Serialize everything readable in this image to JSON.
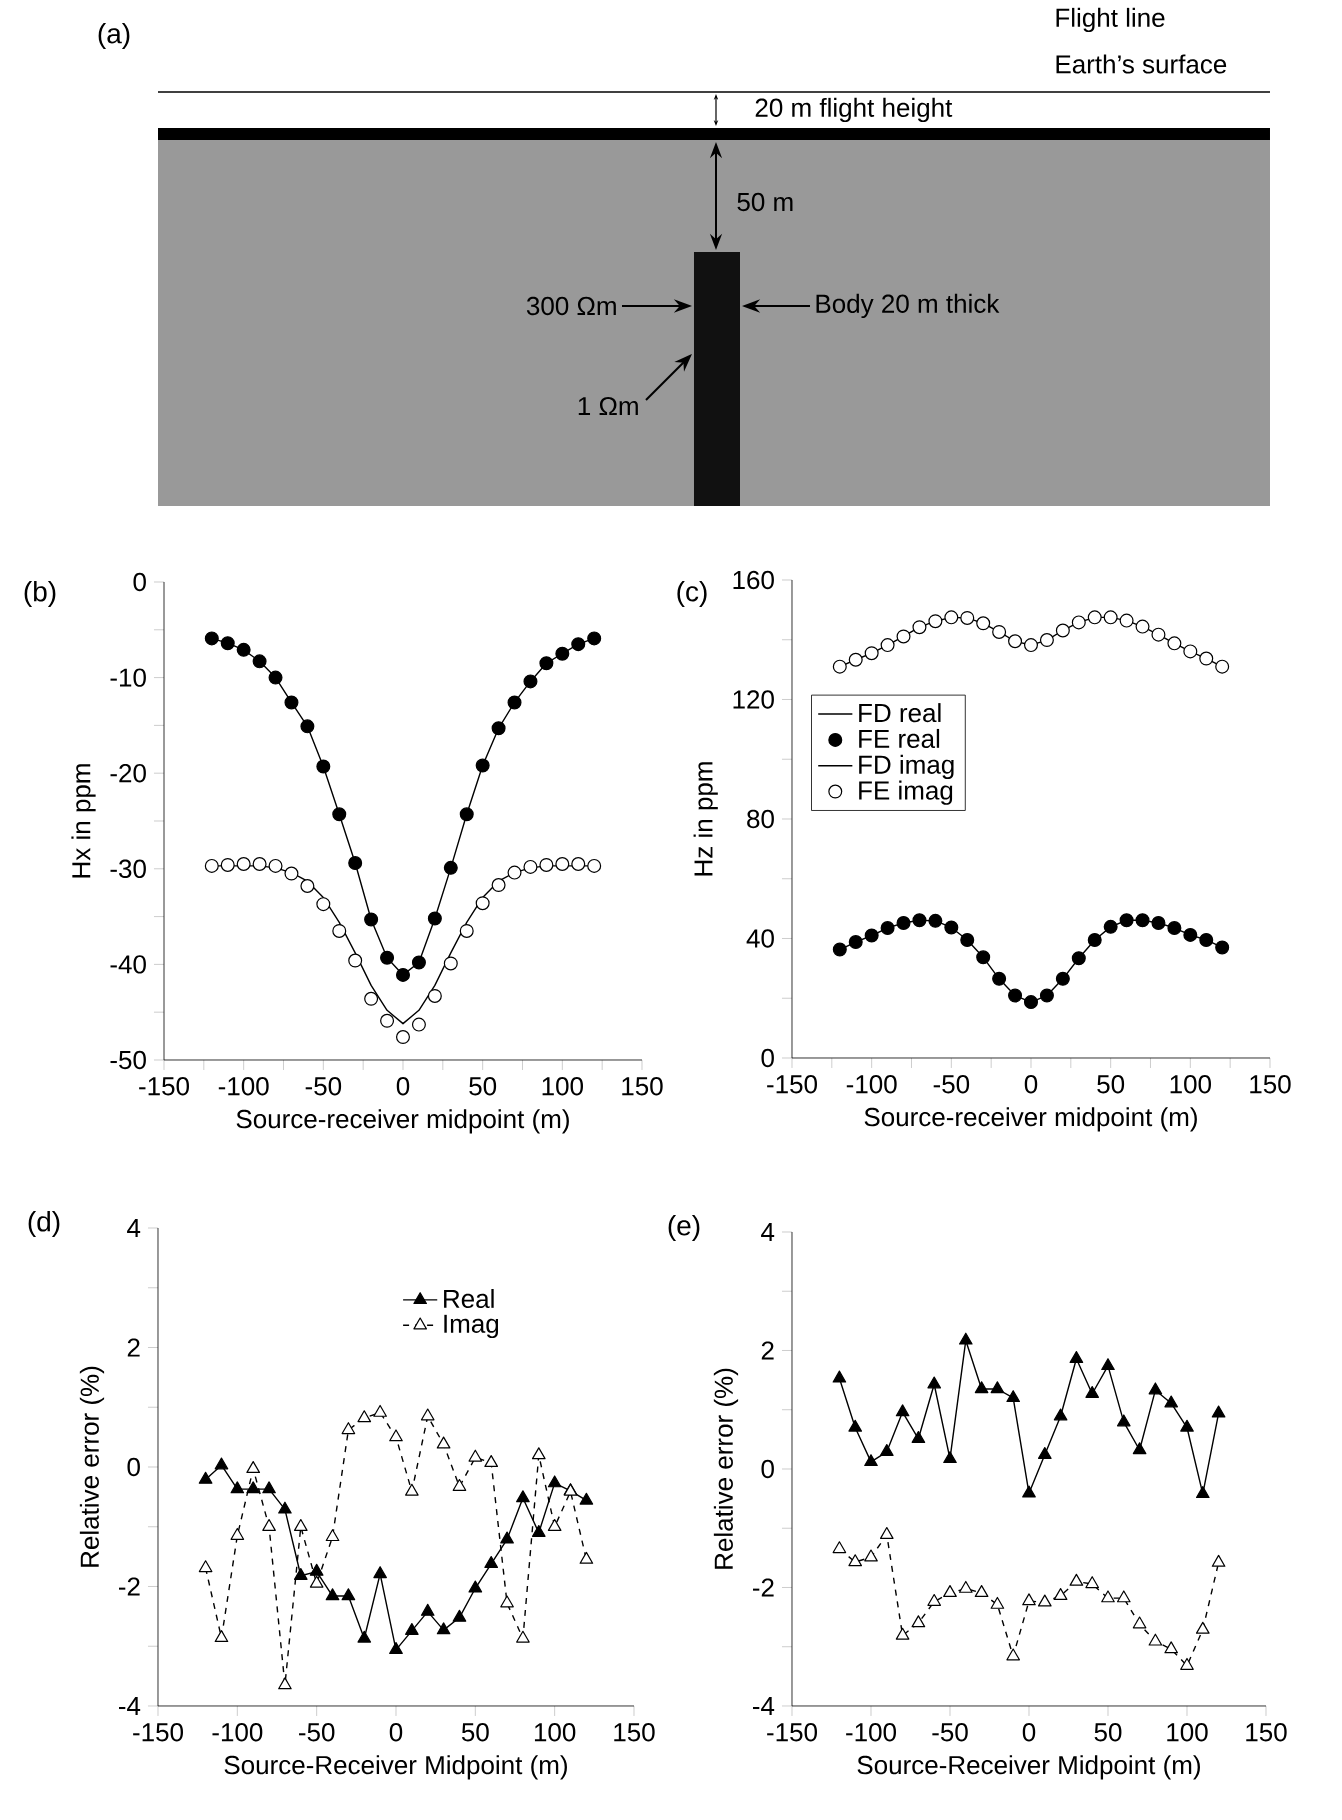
{
  "chart_data": [
    {
      "type": "other",
      "title": "(a)",
      "annotations": [
        "Flight line",
        "Earth’s surface",
        "20 m flight height",
        "50 m",
        "300 Ωm",
        "Body 20 m thick",
        "1 Ωm"
      ]
    },
    {
      "type": "line",
      "title": "(b)",
      "xlabel": "Source-receiver midpoint (m)",
      "ylabel": "Hx in ppm",
      "xlim": [
        -150,
        150
      ],
      "ylim": [
        -50,
        0
      ],
      "xticks": [
        -150,
        {
          "value": -125,
          "label": null
        },
        -100,
        {
          "value": -75,
          "label": null
        },
        -50,
        {
          "value": -25,
          "label": null
        },
        0,
        {
          "value": 25,
          "label": null
        },
        50,
        {
          "value": 75,
          "label": null
        },
        100,
        {
          "value": 125,
          "label": null
        },
        150
      ],
      "yticks": [
        -50,
        {
          "value": -45,
          "label": null
        },
        -40,
        {
          "value": -35,
          "label": null
        },
        -30,
        {
          "value": -25,
          "label": null
        },
        -20,
        {
          "value": -15,
          "label": null
        },
        -10,
        {
          "value": -5,
          "label": null
        },
        0
      ],
      "x": [
        -120,
        -110,
        -100,
        -90,
        -80,
        -70,
        -60,
        -50,
        -40,
        -30,
        -20,
        -10,
        0,
        10,
        20,
        30,
        40,
        50,
        60,
        70,
        80,
        90,
        100,
        110,
        120
      ],
      "series": [
        {
          "type": "line",
          "color": "#000000",
          "marker": "none",
          "line_style": "solid",
          "values": [
            -5.9,
            -6.4,
            -7.1,
            -8.3,
            -10.0,
            -12.6,
            -15.1,
            -19.3,
            -24.3,
            -29.4,
            -35.3,
            -39.3,
            -41.1,
            -39.8,
            -35.2,
            -29.9,
            -24.3,
            -19.2,
            -15.3,
            -12.6,
            -10.4,
            -8.5,
            -7.5,
            -6.5,
            -5.9
          ]
        },
        {
          "type": "scatter",
          "color": "#000000",
          "marker": "circle",
          "values": [
            -5.9,
            -6.4,
            -7.1,
            -8.3,
            -10.0,
            -12.6,
            -15.1,
            -19.3,
            -24.3,
            -29.4,
            -35.3,
            -39.3,
            -41.1,
            -39.8,
            -35.2,
            -29.9,
            -24.3,
            -19.2,
            -15.3,
            -12.6,
            -10.4,
            -8.5,
            -7.5,
            -6.5,
            -5.9
          ]
        },
        {
          "type": "line",
          "color": "#000000",
          "marker": "none",
          "line_style": "solid",
          "values": [
            -29.7,
            -29.7,
            -29.7,
            -29.7,
            -29.9,
            -30.4,
            -31.3,
            -33.0,
            -35.6,
            -38.8,
            -42.2,
            -44.8,
            -46.2,
            -44.8,
            -42.2,
            -38.8,
            -35.6,
            -33.0,
            -31.3,
            -30.4,
            -29.9,
            -29.7,
            -29.7,
            -29.7,
            -29.7
          ]
        },
        {
          "type": "scatter",
          "color": "#000000",
          "marker": "circle",
          "values": [
            -29.7,
            -29.6,
            -29.5,
            -29.5,
            -29.7,
            -30.5,
            -31.8,
            -33.7,
            -36.5,
            -39.6,
            -43.6,
            -45.9,
            -47.6,
            -46.3,
            -43.3,
            -39.9,
            -36.5,
            -33.6,
            -31.7,
            -30.4,
            -29.8,
            -29.6,
            -29.5,
            -29.5,
            -29.7
          ]
        }
      ]
    },
    {
      "type": "line",
      "title": "(c)",
      "xlabel": "Source-receiver midpoint (m)",
      "ylabel": "Hz in ppm",
      "xlim": [
        -150,
        150
      ],
      "ylim": [
        0,
        160
      ],
      "legend": "left",
      "xticks": [
        -150,
        {
          "value": -125,
          "label": null
        },
        -100,
        {
          "value": -75,
          "label": null
        },
        -50,
        {
          "value": -25,
          "label": null
        },
        0,
        {
          "value": 25,
          "label": null
        },
        50,
        {
          "value": 75,
          "label": null
        },
        100,
        {
          "value": 125,
          "label": null
        },
        150
      ],
      "yticks": [
        0,
        {
          "value": 20,
          "label": null
        },
        40,
        {
          "value": 60,
          "label": null
        },
        80,
        {
          "value": 100,
          "label": null
        },
        120,
        {
          "value": 140,
          "label": null
        },
        160
      ],
      "x": [
        -120,
        -110,
        -100,
        -90,
        -80,
        -70,
        -60,
        -50,
        -40,
        -30,
        -20,
        -10,
        0,
        10,
        20,
        30,
        40,
        50,
        60,
        70,
        80,
        90,
        100,
        110,
        120
      ],
      "series": [
        {
          "name": "FD real",
          "type": "line",
          "color": "#000000",
          "marker": "none",
          "line_style": "solid",
          "values": [
            36.3,
            38.8,
            41.0,
            43.5,
            45.2,
            46.1,
            45.9,
            43.7,
            39.5,
            33.7,
            26.5,
            20.9,
            18.7,
            20.9,
            26.5,
            33.4,
            39.5,
            43.9,
            46.1,
            46.1,
            45.2,
            43.5,
            41.2,
            39.5,
            37.0
          ]
        },
        {
          "name": "FE real",
          "type": "scatter",
          "color": "#000000",
          "marker": "circle",
          "values": [
            36.3,
            38.8,
            41.0,
            43.5,
            45.2,
            46.1,
            45.9,
            43.7,
            39.5,
            33.7,
            26.5,
            20.9,
            18.7,
            20.9,
            26.5,
            33.4,
            39.5,
            43.9,
            46.1,
            46.1,
            45.2,
            43.5,
            41.2,
            39.5,
            37.0
          ]
        },
        {
          "name": "FD imag",
          "type": "line",
          "color": "#000000",
          "marker": "none",
          "line_style": "solid",
          "values": [
            131.0,
            133.3,
            135.5,
            138.2,
            141.1,
            144.2,
            146.2,
            147.5,
            147.3,
            145.5,
            142.6,
            139.5,
            138.2,
            139.9,
            143.1,
            145.8,
            147.5,
            147.5,
            146.4,
            144.4,
            141.7,
            138.8,
            136.1,
            133.7,
            131.0
          ]
        },
        {
          "name": "FE imag",
          "type": "scatter",
          "color": "#000000",
          "marker": "circle",
          "values": [
            131.0,
            133.3,
            135.5,
            138.2,
            141.1,
            144.2,
            146.2,
            147.5,
            147.3,
            145.5,
            142.6,
            139.5,
            138.2,
            139.9,
            143.1,
            145.8,
            147.5,
            147.5,
            146.4,
            144.4,
            141.7,
            138.8,
            136.1,
            133.7,
            131.0
          ]
        }
      ]
    },
    {
      "type": "line",
      "title": "(d)",
      "xlabel": "Source-Receiver Midpoint (m)",
      "ylabel": "Relative error (%)",
      "xlim": [
        -150,
        150
      ],
      "ylim": [
        -4,
        4
      ],
      "legend": "top",
      "xticks": [
        -150,
        -100,
        -50,
        0,
        50,
        100,
        150
      ],
      "yticks": [
        -4,
        {
          "value": -3,
          "label": null
        },
        -2,
        {
          "value": -1,
          "label": null
        },
        0,
        {
          "value": 1,
          "label": null
        },
        2,
        {
          "value": 3,
          "label": null
        },
        4
      ],
      "x": [
        -120,
        -110,
        -100,
        -90,
        -80,
        -70,
        -60,
        -50,
        -40,
        -30,
        -20,
        -10,
        0,
        10,
        20,
        30,
        40,
        50,
        60,
        70,
        80,
        90,
        100,
        110,
        120
      ],
      "series": [
        {
          "name": "Real",
          "type": "line",
          "color": "#000000",
          "marker": "triangle",
          "line_style": "solid",
          "values": [
            -0.21,
            0.03,
            -0.37,
            -0.37,
            -0.37,
            -0.71,
            -1.82,
            -1.75,
            -2.16,
            -2.16,
            -2.87,
            -1.79,
            -3.06,
            -2.74,
            -2.42,
            -2.73,
            -2.52,
            -2.03,
            -1.62,
            -1.21,
            -0.52,
            -1.1,
            -0.27,
            -0.4,
            -0.56
          ]
        },
        {
          "name": "Imag",
          "type": "line",
          "color": "#000000",
          "marker": "triangle",
          "line_style": "dashed",
          "values": [
            -1.69,
            -2.86,
            -1.15,
            -0.03,
            -1.0,
            -3.65,
            -1.0,
            -1.95,
            -1.17,
            0.62,
            0.82,
            0.91,
            0.5,
            -0.41,
            0.85,
            0.38,
            -0.33,
            0.16,
            0.07,
            -2.28,
            -2.87,
            0.2,
            -1.0,
            -0.41,
            -1.55
          ]
        }
      ]
    },
    {
      "type": "line",
      "title": "(e)",
      "xlabel": "Source-Receiver Midpoint (m)",
      "ylabel": "Relative error (%)",
      "xlim": [
        -150,
        150
      ],
      "ylim": [
        -4,
        4
      ],
      "xticks": [
        -150,
        -100,
        -50,
        0,
        50,
        100,
        150
      ],
      "yticks": [
        -4,
        {
          "value": -3,
          "label": null
        },
        -2,
        {
          "value": -1,
          "label": null
        },
        0,
        {
          "value": 1,
          "label": null
        },
        2,
        {
          "value": 3,
          "label": null
        },
        4
      ],
      "x": [
        -120,
        -110,
        -100,
        -90,
        -80,
        -70,
        -60,
        -50,
        -40,
        -30,
        -20,
        -10,
        0,
        10,
        20,
        30,
        40,
        50,
        60,
        70,
        80,
        90,
        100,
        110,
        120
      ],
      "series": [
        {
          "type": "line",
          "color": "#000000",
          "marker": "triangle",
          "line_style": "solid",
          "values": [
            1.53,
            0.7,
            0.12,
            0.29,
            0.96,
            0.51,
            1.43,
            0.17,
            2.17,
            1.35,
            1.35,
            1.2,
            -0.41,
            0.24,
            0.89,
            1.86,
            1.27,
            1.74,
            0.79,
            0.32,
            1.33,
            1.11,
            0.7,
            -0.42,
            0.94
          ]
        },
        {
          "type": "line",
          "color": "#000000",
          "marker": "triangle",
          "line_style": "dashed",
          "values": [
            -1.35,
            -1.57,
            -1.49,
            -1.11,
            -2.81,
            -2.6,
            -2.24,
            -2.09,
            -2.02,
            -2.09,
            -2.29,
            -3.16,
            -2.23,
            -2.25,
            -2.14,
            -1.9,
            -1.94,
            -2.18,
            -2.18,
            -2.62,
            -2.91,
            -3.04,
            -3.32,
            -2.71,
            -1.58
          ]
        }
      ]
    }
  ]
}
